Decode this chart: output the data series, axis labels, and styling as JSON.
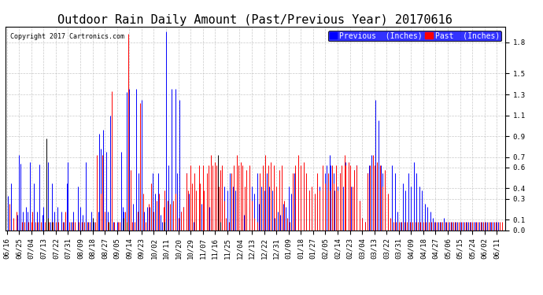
{
  "title": "Outdoor Rain Daily Amount (Past/Previous Year) 20170616",
  "copyright": "Copyright 2017 Cartronics.com",
  "ylim": [
    0,
    1.95
  ],
  "yticks": [
    0.0,
    0.1,
    0.3,
    0.4,
    0.6,
    0.7,
    0.9,
    1.1,
    1.3,
    1.5,
    1.8
  ],
  "background_color": "#ffffff",
  "grid_color": "#bbbbbb",
  "legend_labels": [
    "Previous  (Inches)",
    "Past  (Inches)"
  ],
  "legend_colors": [
    "#0000ff",
    "#ff0000"
  ],
  "title_fontsize": 11,
  "tick_label_fontsize": 6.5,
  "x_tick_positions": [
    0,
    9,
    18,
    27,
    36,
    45,
    54,
    63,
    72,
    81,
    90,
    99,
    108,
    117,
    126,
    135,
    144,
    153,
    162,
    171,
    180,
    189,
    198,
    207,
    216,
    225,
    234,
    243,
    252,
    261,
    270,
    279,
    288,
    297,
    306,
    315,
    324,
    333,
    342,
    351,
    360
  ],
  "x_labels": [
    "06/16",
    "06/25",
    "07/04",
    "07/13",
    "07/22",
    "07/31",
    "08/09",
    "08/18",
    "08/27",
    "09/05",
    "09/14",
    "09/23",
    "10/02",
    "10/11",
    "10/20",
    "10/29",
    "11/07",
    "11/16",
    "11/25",
    "12/04",
    "12/13",
    "12/22",
    "12/31",
    "01/09",
    "01/18",
    "01/27",
    "02/05",
    "02/14",
    "02/23",
    "03/04",
    "03/13",
    "03/22",
    "03/31",
    "04/09",
    "04/18",
    "04/27",
    "05/06",
    "05/15",
    "05/24",
    "06/02",
    "06/11"
  ],
  "blue_data": [
    [
      1,
      0.33
    ],
    [
      3,
      0.45
    ],
    [
      8,
      0.15
    ],
    [
      9,
      0.72
    ],
    [
      10,
      0.64
    ],
    [
      12,
      0.18
    ],
    [
      14,
      0.22
    ],
    [
      15,
      0.18
    ],
    [
      17,
      0.65
    ],
    [
      20,
      0.45
    ],
    [
      22,
      0.18
    ],
    [
      24,
      0.63
    ],
    [
      26,
      0.15
    ],
    [
      27,
      0.22
    ],
    [
      30,
      0.65
    ],
    [
      32,
      0.08
    ],
    [
      33,
      0.45
    ],
    [
      35,
      0.18
    ],
    [
      37,
      0.22
    ],
    [
      40,
      0.18
    ],
    [
      42,
      0.08
    ],
    [
      44,
      0.45
    ],
    [
      45,
      0.65
    ],
    [
      47,
      0.08
    ],
    [
      49,
      0.18
    ],
    [
      52,
      0.42
    ],
    [
      54,
      0.22
    ],
    [
      56,
      0.15
    ],
    [
      58,
      0.65
    ],
    [
      60,
      0.08
    ],
    [
      62,
      0.18
    ],
    [
      64,
      0.08
    ],
    [
      67,
      0.18
    ],
    [
      68,
      0.92
    ],
    [
      69,
      0.78
    ],
    [
      71,
      0.96
    ],
    [
      72,
      0.18
    ],
    [
      73,
      0.75
    ],
    [
      74,
      0.18
    ],
    [
      76,
      1.1
    ],
    [
      78,
      0.08
    ],
    [
      81,
      0.08
    ],
    [
      84,
      0.75
    ],
    [
      85,
      0.22
    ],
    [
      86,
      0.18
    ],
    [
      88,
      1.32
    ],
    [
      90,
      1.35
    ],
    [
      91,
      0.08
    ],
    [
      93,
      0.25
    ],
    [
      95,
      1.35
    ],
    [
      96,
      0.18
    ],
    [
      97,
      0.55
    ],
    [
      99,
      1.25
    ],
    [
      101,
      0.18
    ],
    [
      103,
      0.22
    ],
    [
      105,
      0.22
    ],
    [
      107,
      0.55
    ],
    [
      109,
      0.35
    ],
    [
      111,
      0.55
    ],
    [
      113,
      0.15
    ],
    [
      114,
      0.08
    ],
    [
      117,
      1.9
    ],
    [
      119,
      0.62
    ],
    [
      120,
      0.08
    ],
    [
      121,
      1.35
    ],
    [
      122,
      0.25
    ],
    [
      124,
      1.35
    ],
    [
      125,
      0.55
    ],
    [
      127,
      1.25
    ],
    [
      128,
      0.18
    ],
    [
      130,
      0.22
    ],
    [
      132,
      0.55
    ],
    [
      134,
      0.35
    ],
    [
      136,
      0.15
    ],
    [
      137,
      0.08
    ],
    [
      139,
      0.18
    ],
    [
      141,
      0.15
    ],
    [
      143,
      0.25
    ],
    [
      145,
      0.18
    ],
    [
      147,
      0.25
    ],
    [
      149,
      0.22
    ],
    [
      151,
      0.15
    ],
    [
      153,
      0.42
    ],
    [
      155,
      0.35
    ],
    [
      157,
      0.55
    ],
    [
      158,
      0.25
    ],
    [
      160,
      0.42
    ],
    [
      162,
      0.38
    ],
    [
      164,
      0.55
    ],
    [
      166,
      0.42
    ],
    [
      168,
      0.38
    ],
    [
      170,
      0.12
    ],
    [
      172,
      0.18
    ],
    [
      174,
      0.15
    ],
    [
      176,
      0.25
    ],
    [
      178,
      0.22
    ],
    [
      180,
      0.42
    ],
    [
      182,
      0.35
    ],
    [
      184,
      0.55
    ],
    [
      185,
      0.25
    ],
    [
      187,
      0.42
    ],
    [
      189,
      0.38
    ],
    [
      191,
      0.55
    ],
    [
      193,
      0.42
    ],
    [
      195,
      0.38
    ],
    [
      197,
      0.12
    ],
    [
      199,
      0.18
    ],
    [
      201,
      0.15
    ],
    [
      203,
      0.25
    ],
    [
      205,
      0.22
    ],
    [
      207,
      0.42
    ],
    [
      209,
      0.35
    ],
    [
      211,
      0.55
    ],
    [
      212,
      0.25
    ],
    [
      214,
      0.42
    ],
    [
      216,
      0.38
    ],
    [
      218,
      0.55
    ],
    [
      220,
      0.42
    ],
    [
      222,
      0.38
    ],
    [
      224,
      0.12
    ],
    [
      226,
      0.25
    ],
    [
      228,
      0.45
    ],
    [
      230,
      0.42
    ],
    [
      232,
      0.38
    ],
    [
      234,
      0.55
    ],
    [
      235,
      0.62
    ],
    [
      237,
      0.72
    ],
    [
      238,
      0.62
    ],
    [
      240,
      0.55
    ],
    [
      241,
      0.38
    ],
    [
      243,
      0.42
    ],
    [
      245,
      0.55
    ],
    [
      247,
      0.42
    ],
    [
      249,
      0.65
    ],
    [
      251,
      0.62
    ],
    [
      253,
      0.42
    ],
    [
      255,
      0.58
    ],
    [
      257,
      0.62
    ],
    [
      259,
      0.28
    ],
    [
      261,
      0.12
    ],
    [
      263,
      0.08
    ],
    [
      265,
      0.55
    ],
    [
      266,
      0.62
    ],
    [
      268,
      0.72
    ],
    [
      269,
      0.62
    ],
    [
      271,
      1.25
    ],
    [
      273,
      1.05
    ],
    [
      275,
      0.62
    ],
    [
      276,
      0.55
    ],
    [
      278,
      0.18
    ],
    [
      280,
      0.08
    ],
    [
      283,
      0.62
    ],
    [
      285,
      0.55
    ],
    [
      287,
      0.18
    ],
    [
      289,
      0.08
    ],
    [
      291,
      0.45
    ],
    [
      293,
      0.38
    ],
    [
      295,
      0.55
    ],
    [
      297,
      0.42
    ],
    [
      299,
      0.65
    ],
    [
      301,
      0.55
    ],
    [
      303,
      0.42
    ],
    [
      305,
      0.38
    ],
    [
      307,
      0.25
    ],
    [
      309,
      0.22
    ],
    [
      311,
      0.18
    ],
    [
      313,
      0.12
    ],
    [
      315,
      0.08
    ],
    [
      317,
      0.08
    ],
    [
      319,
      0.08
    ],
    [
      321,
      0.12
    ],
    [
      323,
      0.08
    ],
    [
      325,
      0.08
    ],
    [
      327,
      0.08
    ],
    [
      329,
      0.08
    ],
    [
      331,
      0.08
    ],
    [
      333,
      0.08
    ],
    [
      335,
      0.08
    ],
    [
      337,
      0.08
    ],
    [
      339,
      0.08
    ],
    [
      341,
      0.08
    ],
    [
      343,
      0.08
    ],
    [
      345,
      0.08
    ],
    [
      347,
      0.08
    ],
    [
      349,
      0.08
    ],
    [
      351,
      0.08
    ],
    [
      353,
      0.08
    ],
    [
      355,
      0.08
    ],
    [
      357,
      0.08
    ],
    [
      359,
      0.08
    ],
    [
      361,
      0.08
    ]
  ],
  "red_data": [
    [
      2,
      0.25
    ],
    [
      5,
      0.12
    ],
    [
      7,
      0.18
    ],
    [
      11,
      0.08
    ],
    [
      13,
      0.08
    ],
    [
      16,
      0.08
    ],
    [
      18,
      0.08
    ],
    [
      19,
      0.18
    ],
    [
      21,
      0.08
    ],
    [
      23,
      0.08
    ],
    [
      25,
      0.08
    ],
    [
      28,
      0.08
    ],
    [
      31,
      0.08
    ],
    [
      34,
      0.08
    ],
    [
      36,
      0.08
    ],
    [
      38,
      0.08
    ],
    [
      41,
      0.08
    ],
    [
      43,
      0.18
    ],
    [
      46,
      0.08
    ],
    [
      48,
      0.08
    ],
    [
      50,
      0.08
    ],
    [
      53,
      0.08
    ],
    [
      55,
      0.08
    ],
    [
      57,
      0.08
    ],
    [
      59,
      0.08
    ],
    [
      61,
      0.08
    ],
    [
      63,
      0.08
    ],
    [
      65,
      0.08
    ],
    [
      66,
      0.72
    ],
    [
      69,
      0.35
    ],
    [
      70,
      0.72
    ],
    [
      72,
      0.18
    ],
    [
      74,
      0.08
    ],
    [
      77,
      1.33
    ],
    [
      79,
      0.08
    ],
    [
      82,
      0.08
    ],
    [
      83,
      0.08
    ],
    [
      87,
      0.18
    ],
    [
      89,
      1.88
    ],
    [
      91,
      0.58
    ],
    [
      92,
      0.08
    ],
    [
      94,
      0.08
    ],
    [
      96,
      0.18
    ],
    [
      98,
      1.22
    ],
    [
      100,
      0.35
    ],
    [
      102,
      0.08
    ],
    [
      104,
      0.25
    ],
    [
      106,
      0.45
    ],
    [
      108,
      0.18
    ],
    [
      110,
      0.28
    ],
    [
      112,
      0.35
    ],
    [
      115,
      0.22
    ],
    [
      116,
      0.38
    ],
    [
      118,
      0.28
    ],
    [
      120,
      0.25
    ],
    [
      122,
      0.28
    ],
    [
      124,
      0.35
    ],
    [
      126,
      0.12
    ],
    [
      128,
      0.18
    ],
    [
      130,
      0.22
    ],
    [
      132,
      0.55
    ],
    [
      133,
      0.38
    ],
    [
      135,
      0.62
    ],
    [
      136,
      0.45
    ],
    [
      138,
      0.55
    ],
    [
      139,
      0.38
    ],
    [
      141,
      0.62
    ],
    [
      142,
      0.45
    ],
    [
      144,
      0.62
    ],
    [
      145,
      0.38
    ],
    [
      147,
      0.55
    ],
    [
      148,
      0.62
    ],
    [
      150,
      0.72
    ],
    [
      151,
      0.62
    ],
    [
      153,
      0.65
    ],
    [
      154,
      0.62
    ],
    [
      156,
      0.42
    ],
    [
      157,
      0.58
    ],
    [
      158,
      0.62
    ],
    [
      160,
      0.28
    ],
    [
      161,
      0.12
    ],
    [
      163,
      0.08
    ],
    [
      165,
      0.55
    ],
    [
      167,
      0.62
    ],
    [
      169,
      0.72
    ],
    [
      170,
      0.62
    ],
    [
      172,
      0.65
    ],
    [
      173,
      0.62
    ],
    [
      175,
      0.42
    ],
    [
      176,
      0.58
    ],
    [
      178,
      0.62
    ],
    [
      180,
      0.28
    ],
    [
      182,
      0.12
    ],
    [
      184,
      0.08
    ],
    [
      186,
      0.55
    ],
    [
      188,
      0.62
    ],
    [
      190,
      0.72
    ],
    [
      192,
      0.62
    ],
    [
      194,
      0.65
    ],
    [
      196,
      0.62
    ],
    [
      198,
      0.42
    ],
    [
      200,
      0.58
    ],
    [
      202,
      0.62
    ],
    [
      204,
      0.28
    ],
    [
      206,
      0.12
    ],
    [
      208,
      0.08
    ],
    [
      210,
      0.55
    ],
    [
      212,
      0.62
    ],
    [
      214,
      0.72
    ],
    [
      216,
      0.62
    ],
    [
      218,
      0.65
    ],
    [
      220,
      0.55
    ],
    [
      222,
      0.38
    ],
    [
      224,
      0.42
    ],
    [
      226,
      0.35
    ],
    [
      228,
      0.55
    ],
    [
      230,
      0.38
    ],
    [
      232,
      0.62
    ],
    [
      234,
      0.45
    ],
    [
      236,
      0.55
    ],
    [
      237,
      0.38
    ],
    [
      239,
      0.62
    ],
    [
      240,
      0.45
    ],
    [
      242,
      0.62
    ],
    [
      243,
      0.38
    ],
    [
      245,
      0.55
    ],
    [
      246,
      0.62
    ],
    [
      248,
      0.72
    ],
    [
      249,
      0.62
    ],
    [
      251,
      0.65
    ],
    [
      252,
      0.62
    ],
    [
      254,
      0.42
    ],
    [
      255,
      0.58
    ],
    [
      257,
      0.62
    ],
    [
      259,
      0.28
    ],
    [
      261,
      0.12
    ],
    [
      263,
      0.08
    ],
    [
      265,
      0.55
    ],
    [
      267,
      0.62
    ],
    [
      269,
      0.72
    ],
    [
      270,
      0.62
    ],
    [
      272,
      0.65
    ],
    [
      274,
      0.62
    ],
    [
      276,
      0.42
    ],
    [
      278,
      0.58
    ],
    [
      280,
      0.35
    ],
    [
      282,
      0.12
    ],
    [
      284,
      0.08
    ],
    [
      286,
      0.08
    ],
    [
      288,
      0.08
    ],
    [
      290,
      0.08
    ],
    [
      292,
      0.08
    ],
    [
      294,
      0.08
    ],
    [
      296,
      0.08
    ],
    [
      298,
      0.08
    ],
    [
      300,
      0.08
    ],
    [
      302,
      0.08
    ],
    [
      304,
      0.08
    ],
    [
      306,
      0.08
    ],
    [
      308,
      0.08
    ],
    [
      310,
      0.08
    ],
    [
      312,
      0.08
    ],
    [
      314,
      0.08
    ],
    [
      316,
      0.08
    ],
    [
      318,
      0.08
    ],
    [
      320,
      0.08
    ],
    [
      322,
      0.08
    ],
    [
      324,
      0.08
    ],
    [
      326,
      0.08
    ],
    [
      328,
      0.08
    ],
    [
      330,
      0.08
    ],
    [
      332,
      0.08
    ],
    [
      334,
      0.08
    ],
    [
      336,
      0.08
    ],
    [
      338,
      0.08
    ],
    [
      340,
      0.08
    ],
    [
      342,
      0.08
    ],
    [
      344,
      0.08
    ],
    [
      346,
      0.08
    ],
    [
      348,
      0.08
    ],
    [
      350,
      0.08
    ],
    [
      352,
      0.08
    ],
    [
      354,
      0.08
    ],
    [
      356,
      0.08
    ],
    [
      358,
      0.08
    ],
    [
      360,
      0.08
    ],
    [
      362,
      0.08
    ],
    [
      364,
      0.08
    ]
  ],
  "black_data": [
    [
      29,
      0.88
    ],
    [
      30,
      0.12
    ],
    [
      33,
      0.08
    ],
    [
      63,
      0.12
    ],
    [
      75,
      0.08
    ],
    [
      86,
      0.12
    ],
    [
      88,
      0.08
    ],
    [
      116,
      0.08
    ],
    [
      155,
      0.72
    ],
    [
      157,
      0.08
    ]
  ],
  "n_days": 366
}
